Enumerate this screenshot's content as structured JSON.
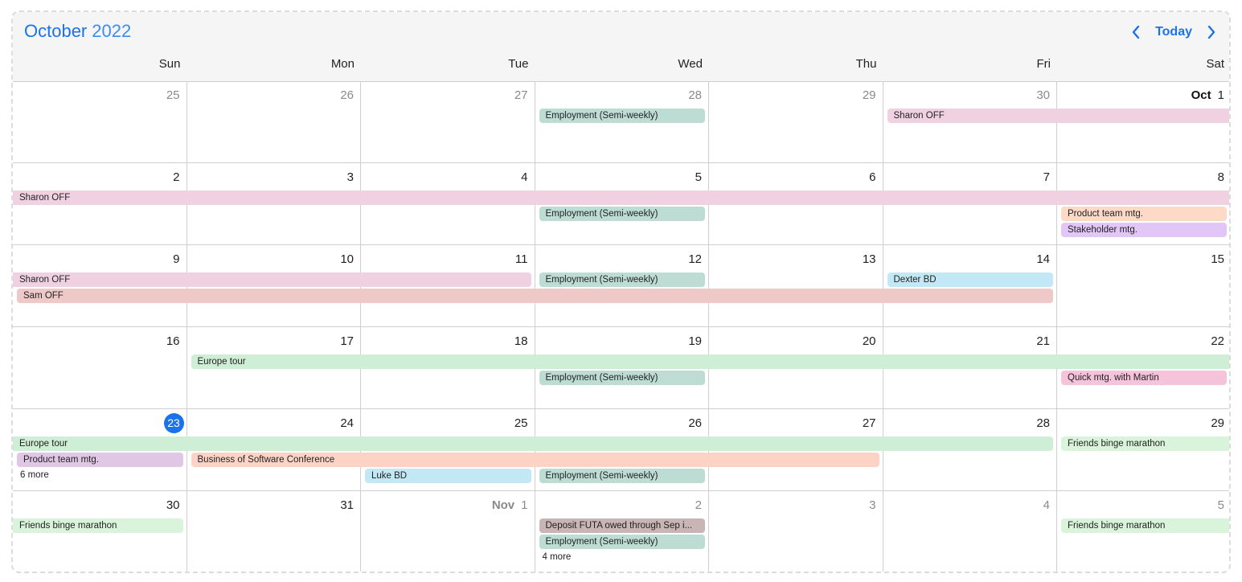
{
  "header": {
    "month": "October",
    "year": "2022",
    "today_label": "Today",
    "prev_icon": "chevron-left-icon",
    "next_icon": "chevron-right-icon"
  },
  "colors": {
    "accent": "#1a73e8",
    "header_bg": "#f5f5f5",
    "grid_line": "#cfcfcf",
    "employment": "#bddcd3",
    "sharon": "#f0d1e1",
    "sam": "#efc8c8",
    "product_team_orange": "#fdd9c8",
    "stakeholder": "#e2c6f7",
    "dexter": "#c3e8f5",
    "europe": "#ceeed5",
    "quick_mtg": "#f5c4da",
    "product_team_purple": "#e0c7e6",
    "conference": "#fdd3c6",
    "luke": "#c3e8f5",
    "friends": "#d9f4da",
    "deposit": "#c9b5b5"
  },
  "weekdays": [
    "Sun",
    "Mon",
    "Tue",
    "Wed",
    "Thu",
    "Fri",
    "Sat"
  ],
  "weeks": [
    {
      "days": [
        {
          "num": "25",
          "other": true
        },
        {
          "num": "26",
          "other": true
        },
        {
          "num": "27",
          "other": true
        },
        {
          "num": "28",
          "other": true
        },
        {
          "num": "29",
          "other": true
        },
        {
          "num": "30",
          "other": true
        },
        {
          "num": "1",
          "month_label": "Oct"
        }
      ],
      "events": [
        {
          "title": "Employment (Semi-weekly)",
          "start": 3,
          "end": 3,
          "lane": 0,
          "color": "#bddcd3"
        },
        {
          "title": "Sharon OFF",
          "start": 5,
          "end": 6,
          "lane": 0,
          "color": "#f0d1e1",
          "cont_right": true
        }
      ]
    },
    {
      "days": [
        {
          "num": "2"
        },
        {
          "num": "3"
        },
        {
          "num": "4"
        },
        {
          "num": "5"
        },
        {
          "num": "6"
        },
        {
          "num": "7"
        },
        {
          "num": "8"
        }
      ],
      "events": [
        {
          "title": "Sharon OFF",
          "start": 0,
          "end": 6,
          "lane": 0,
          "color": "#f0d1e1",
          "cont_left": true,
          "cont_right": true
        },
        {
          "title": "Employment (Semi-weekly)",
          "start": 3,
          "end": 3,
          "lane": 1,
          "color": "#bddcd3"
        },
        {
          "title": "Product team mtg.",
          "start": 6,
          "end": 6,
          "lane": 1,
          "color": "#fdd9c8"
        },
        {
          "title": "Stakeholder mtg.",
          "start": 6,
          "end": 6,
          "lane": 2,
          "color": "#e2c6f7"
        }
      ]
    },
    {
      "days": [
        {
          "num": "9"
        },
        {
          "num": "10"
        },
        {
          "num": "11"
        },
        {
          "num": "12"
        },
        {
          "num": "13"
        },
        {
          "num": "14"
        },
        {
          "num": "15"
        }
      ],
      "events": [
        {
          "title": "Sharon OFF",
          "start": 0,
          "end": 2,
          "lane": 0,
          "color": "#f0d1e1",
          "cont_left": true
        },
        {
          "title": "Employment (Semi-weekly)",
          "start": 3,
          "end": 3,
          "lane": 0,
          "color": "#bddcd3"
        },
        {
          "title": "Dexter BD",
          "start": 5,
          "end": 5,
          "lane": 0,
          "color": "#c3e8f5"
        },
        {
          "title": "Sam OFF",
          "start": 0,
          "end": 5,
          "lane": 1,
          "color": "#efc8c8"
        }
      ]
    },
    {
      "days": [
        {
          "num": "16"
        },
        {
          "num": "17"
        },
        {
          "num": "18"
        },
        {
          "num": "19"
        },
        {
          "num": "20"
        },
        {
          "num": "21"
        },
        {
          "num": "22"
        }
      ],
      "events": [
        {
          "title": "Europe tour",
          "start": 1,
          "end": 6,
          "lane": 0,
          "color": "#ceeed5",
          "cont_right": true
        },
        {
          "title": "Employment (Semi-weekly)",
          "start": 3,
          "end": 3,
          "lane": 1,
          "color": "#bddcd3"
        },
        {
          "title": "Quick mtg. with Martin",
          "start": 6,
          "end": 6,
          "lane": 1,
          "color": "#f5c4da"
        }
      ]
    },
    {
      "days": [
        {
          "num": "23",
          "today": true
        },
        {
          "num": "24"
        },
        {
          "num": "25"
        },
        {
          "num": "26"
        },
        {
          "num": "27"
        },
        {
          "num": "28"
        },
        {
          "num": "29"
        }
      ],
      "events": [
        {
          "title": "Europe tour",
          "start": 0,
          "end": 5,
          "lane": 0,
          "color": "#ceeed5",
          "cont_left": true
        },
        {
          "title": "Friends binge marathon",
          "start": 6,
          "end": 6,
          "lane": 0,
          "color": "#d9f4da",
          "cont_right": true
        },
        {
          "title": "Product team mtg.",
          "start": 0,
          "end": 0,
          "lane": 1,
          "color": "#e0c7e6"
        },
        {
          "title": "Business of Software Conference",
          "start": 1,
          "end": 4,
          "lane": 1,
          "color": "#fdd3c6"
        },
        {
          "title": "Luke BD",
          "start": 2,
          "end": 2,
          "lane": 2,
          "color": "#c3e8f5"
        },
        {
          "title": "Employment (Semi-weekly)",
          "start": 3,
          "end": 3,
          "lane": 2,
          "color": "#bddcd3"
        }
      ],
      "more": [
        {
          "label": "6 more",
          "col": 0,
          "lane": 2
        }
      ]
    },
    {
      "days": [
        {
          "num": "30"
        },
        {
          "num": "31"
        },
        {
          "num": "1",
          "month_label": "Nov",
          "other": true
        },
        {
          "num": "2",
          "other": true
        },
        {
          "num": "3",
          "other": true
        },
        {
          "num": "4",
          "other": true
        },
        {
          "num": "5",
          "other": true
        }
      ],
      "events": [
        {
          "title": "Friends binge marathon",
          "start": 0,
          "end": 0,
          "lane": 0,
          "color": "#d9f4da",
          "cont_left": true
        },
        {
          "title": "Deposit FUTA owed through Sep i...",
          "start": 3,
          "end": 3,
          "lane": 0,
          "color": "#c9b5b5"
        },
        {
          "title": "Employment (Semi-weekly)",
          "start": 3,
          "end": 3,
          "lane": 1,
          "color": "#bddcd3"
        },
        {
          "title": "Friends binge marathon",
          "start": 6,
          "end": 6,
          "lane": 0,
          "color": "#d9f4da",
          "cont_right": true
        }
      ],
      "more": [
        {
          "label": "4 more",
          "col": 3,
          "lane": 2
        }
      ]
    }
  ]
}
